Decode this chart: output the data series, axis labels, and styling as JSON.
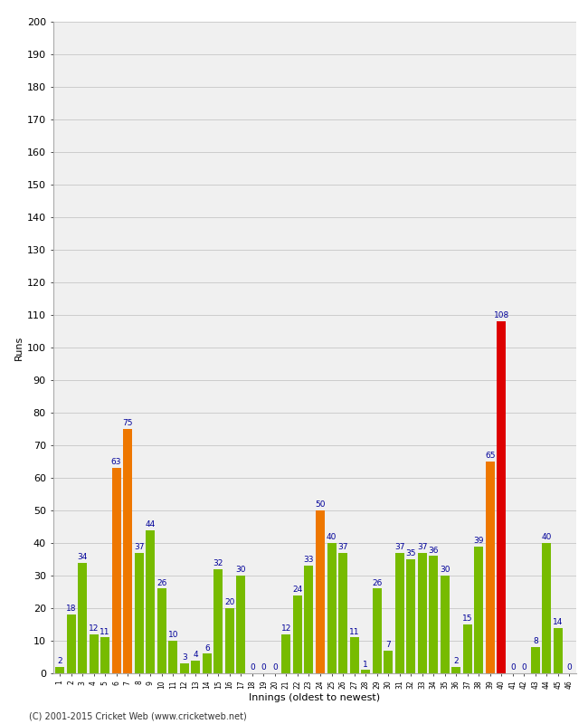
{
  "innings": [
    1,
    2,
    3,
    4,
    5,
    6,
    7,
    8,
    9,
    10,
    11,
    12,
    13,
    14,
    15,
    16,
    17,
    18,
    19,
    20,
    21,
    22,
    23,
    24,
    25,
    26,
    27,
    28,
    29,
    30,
    31,
    32,
    33,
    34,
    35,
    36,
    37,
    38,
    39,
    40,
    41,
    42,
    43,
    44,
    45,
    46
  ],
  "values": [
    2,
    18,
    34,
    12,
    11,
    63,
    75,
    37,
    44,
    26,
    10,
    3,
    4,
    6,
    32,
    20,
    30,
    0,
    0,
    0,
    12,
    24,
    33,
    50,
    40,
    37,
    11,
    1,
    26,
    7,
    37,
    35,
    37,
    36,
    30,
    2,
    15,
    39,
    65,
    108,
    0,
    0,
    8,
    40,
    14,
    0
  ],
  "colors": [
    "#77bb00",
    "#77bb00",
    "#77bb00",
    "#77bb00",
    "#77bb00",
    "#ee7700",
    "#ee7700",
    "#77bb00",
    "#77bb00",
    "#77bb00",
    "#77bb00",
    "#77bb00",
    "#77bb00",
    "#77bb00",
    "#77bb00",
    "#77bb00",
    "#77bb00",
    "#77bb00",
    "#77bb00",
    "#77bb00",
    "#77bb00",
    "#77bb00",
    "#77bb00",
    "#ee7700",
    "#77bb00",
    "#77bb00",
    "#77bb00",
    "#77bb00",
    "#77bb00",
    "#77bb00",
    "#77bb00",
    "#77bb00",
    "#77bb00",
    "#77bb00",
    "#77bb00",
    "#77bb00",
    "#77bb00",
    "#77bb00",
    "#ee7700",
    "#dd0000",
    "#77bb00",
    "#77bb00",
    "#77bb00",
    "#77bb00",
    "#77bb00",
    "#77bb00"
  ],
  "ylabel": "Runs",
  "xlabel": "Innings (oldest to newest)",
  "ylim": [
    0,
    200
  ],
  "yticks": [
    0,
    10,
    20,
    30,
    40,
    50,
    60,
    70,
    80,
    90,
    100,
    110,
    120,
    130,
    140,
    150,
    160,
    170,
    180,
    190,
    200
  ],
  "background_color": "#f0f0f0",
  "label_color": "#000099",
  "label_fontsize": 6.5,
  "axis_fontsize": 8,
  "xtick_fontsize": 5.5,
  "grid_color": "#cccccc",
  "footer": "(C) 2001-2015 Cricket Web (www.cricketweb.net)"
}
